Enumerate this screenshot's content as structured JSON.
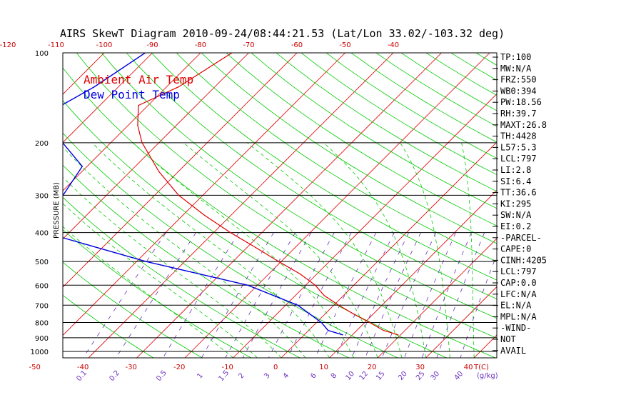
{
  "chart_data": {
    "type": "line",
    "title": "AIRS SkewT Diagram 2010-09-24/08:44:21.53 (Lat/Lon 33.02/-103.32 deg)",
    "ylabel": "PRESSURE (MB)",
    "pressure_ticks": [
      "100",
      "200",
      "300",
      "400",
      "500",
      "600",
      "700",
      "800",
      "900",
      "1000"
    ],
    "pressure_values": [
      100,
      200,
      300,
      400,
      500,
      600,
      700,
      800,
      900,
      1000
    ],
    "top_temp_ticks": [
      "-120",
      "-110",
      "-100",
      "-90",
      "-80",
      "-70",
      "-60",
      "-50",
      "-40"
    ],
    "top_temp_values": [
      -120,
      -110,
      -100,
      -90,
      -80,
      -70,
      -60,
      -50,
      -40
    ],
    "bottom_temp_ticks": [
      "-50",
      "-40",
      "-30",
      "-20",
      "-10",
      "0",
      "10",
      "20",
      "30",
      "40"
    ],
    "bottom_temp_values": [
      -50,
      -40,
      -30,
      -20,
      -10,
      0,
      10,
      20,
      30,
      40
    ],
    "bottom_temp_unit": "T(C)",
    "mixing_ratio_ticks": [
      "0.1",
      "0.2",
      "0.5",
      "1",
      "1.5",
      "2",
      "3",
      "4",
      "6",
      "8",
      "10",
      "12",
      "15",
      "20",
      "25",
      "30",
      "40"
    ],
    "mixing_ratio_unit": "(g/kg)",
    "series": [
      {
        "name": "Ambient Air Temp",
        "color": "#e00000",
        "points": [
          {
            "p": 100,
            "t": -73.5
          },
          {
            "p": 130,
            "t": -77.5
          },
          {
            "p": 150,
            "t": -82
          },
          {
            "p": 175,
            "t": -78
          },
          {
            "p": 200,
            "t": -73.5
          },
          {
            "p": 250,
            "t": -64
          },
          {
            "p": 300,
            "t": -55
          },
          {
            "p": 350,
            "t": -45.5
          },
          {
            "p": 400,
            "t": -36.5
          },
          {
            "p": 450,
            "t": -28
          },
          {
            "p": 500,
            "t": -20.5
          },
          {
            "p": 550,
            "t": -13.5
          },
          {
            "p": 600,
            "t": -8
          },
          {
            "p": 650,
            "t": -4
          },
          {
            "p": 700,
            "t": 1
          },
          {
            "p": 750,
            "t": 6
          },
          {
            "p": 800,
            "t": 11
          },
          {
            "p": 850,
            "t": 15.5
          },
          {
            "p": 880,
            "t": 19.5
          }
        ]
      },
      {
        "name": "Dew Point Temp",
        "color": "#0000e0",
        "points": [
          {
            "p": 100,
            "t": -91.5
          },
          {
            "p": 130,
            "t": -95
          },
          {
            "p": 150,
            "t": -98
          },
          {
            "p": 175,
            "t": -95
          },
          {
            "p": 200,
            "t": -90
          },
          {
            "p": 240,
            "t": -81
          },
          {
            "p": 300,
            "t": -79
          },
          {
            "p": 400,
            "t": -75
          },
          {
            "p": 500,
            "t": -48
          },
          {
            "p": 600,
            "t": -22
          },
          {
            "p": 700,
            "t": -7.5
          },
          {
            "p": 800,
            "t": 1
          },
          {
            "p": 850,
            "t": 4
          },
          {
            "p": 880,
            "t": 8
          }
        ]
      }
    ],
    "side_panel": [
      "TP:100",
      "MW:N/A",
      "FRZ:550",
      "WB0:394",
      "PW:18.56",
      "RH:39.7",
      "MAXT:26.8",
      "TH:4428",
      "L57:5.3",
      "LCL:797",
      "LI:2.8",
      "SI:6.4",
      "TT:36.6",
      "KI:295",
      "SW:N/A",
      "EI:0.2",
      "-PARCEL-",
      "CAPE:0",
      "CINH:4205",
      "LCL:797",
      "CAP:0.0",
      "LFC:N/A",
      "EL:N/A",
      "MPL:N/A",
      "-WIND-",
      "NOT",
      "AVAIL"
    ],
    "colors": {
      "isotherms": "#e00000",
      "dry_adiabats": "#00cc00",
      "moist_adiabats": "#00cc00",
      "mixing_ratio": "#6b2fbf",
      "temperature": "#e00000",
      "dewpoint": "#0000e0"
    }
  }
}
